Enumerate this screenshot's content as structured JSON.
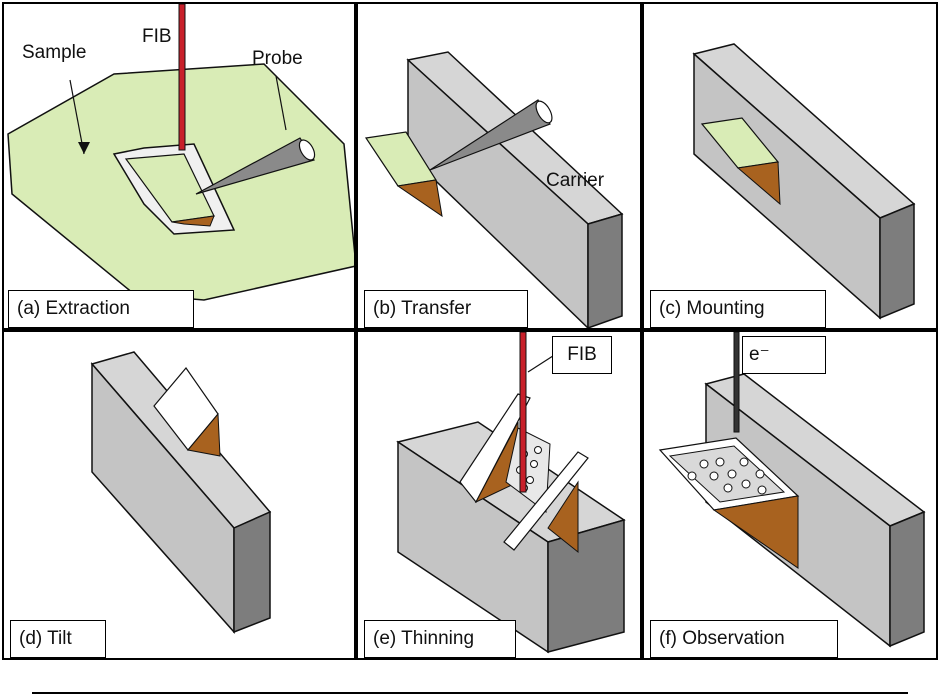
{
  "panels": {
    "a": {
      "caption": "(a) Extraction",
      "label_sample": "Sample",
      "label_fib": "FIB",
      "label_probe": "Probe"
    },
    "b": {
      "caption": "(b) Transfer",
      "label_carrier": "Carrier"
    },
    "c": {
      "caption": "(c) Mounting"
    },
    "d": {
      "caption": "(d) Tilt"
    },
    "e": {
      "caption": "(e) Thinning",
      "label_fib": "FIB"
    },
    "f": {
      "caption": "(f) Observation",
      "label_beam": "e⁻"
    }
  },
  "colors": {
    "sample_green": "#d9ecb6",
    "lamella_brown": "#a8621f",
    "carrier_gray": "#c9c9c9",
    "carrier_dark": "#7d7d7d",
    "fib_red": "#c8202a"
  }
}
